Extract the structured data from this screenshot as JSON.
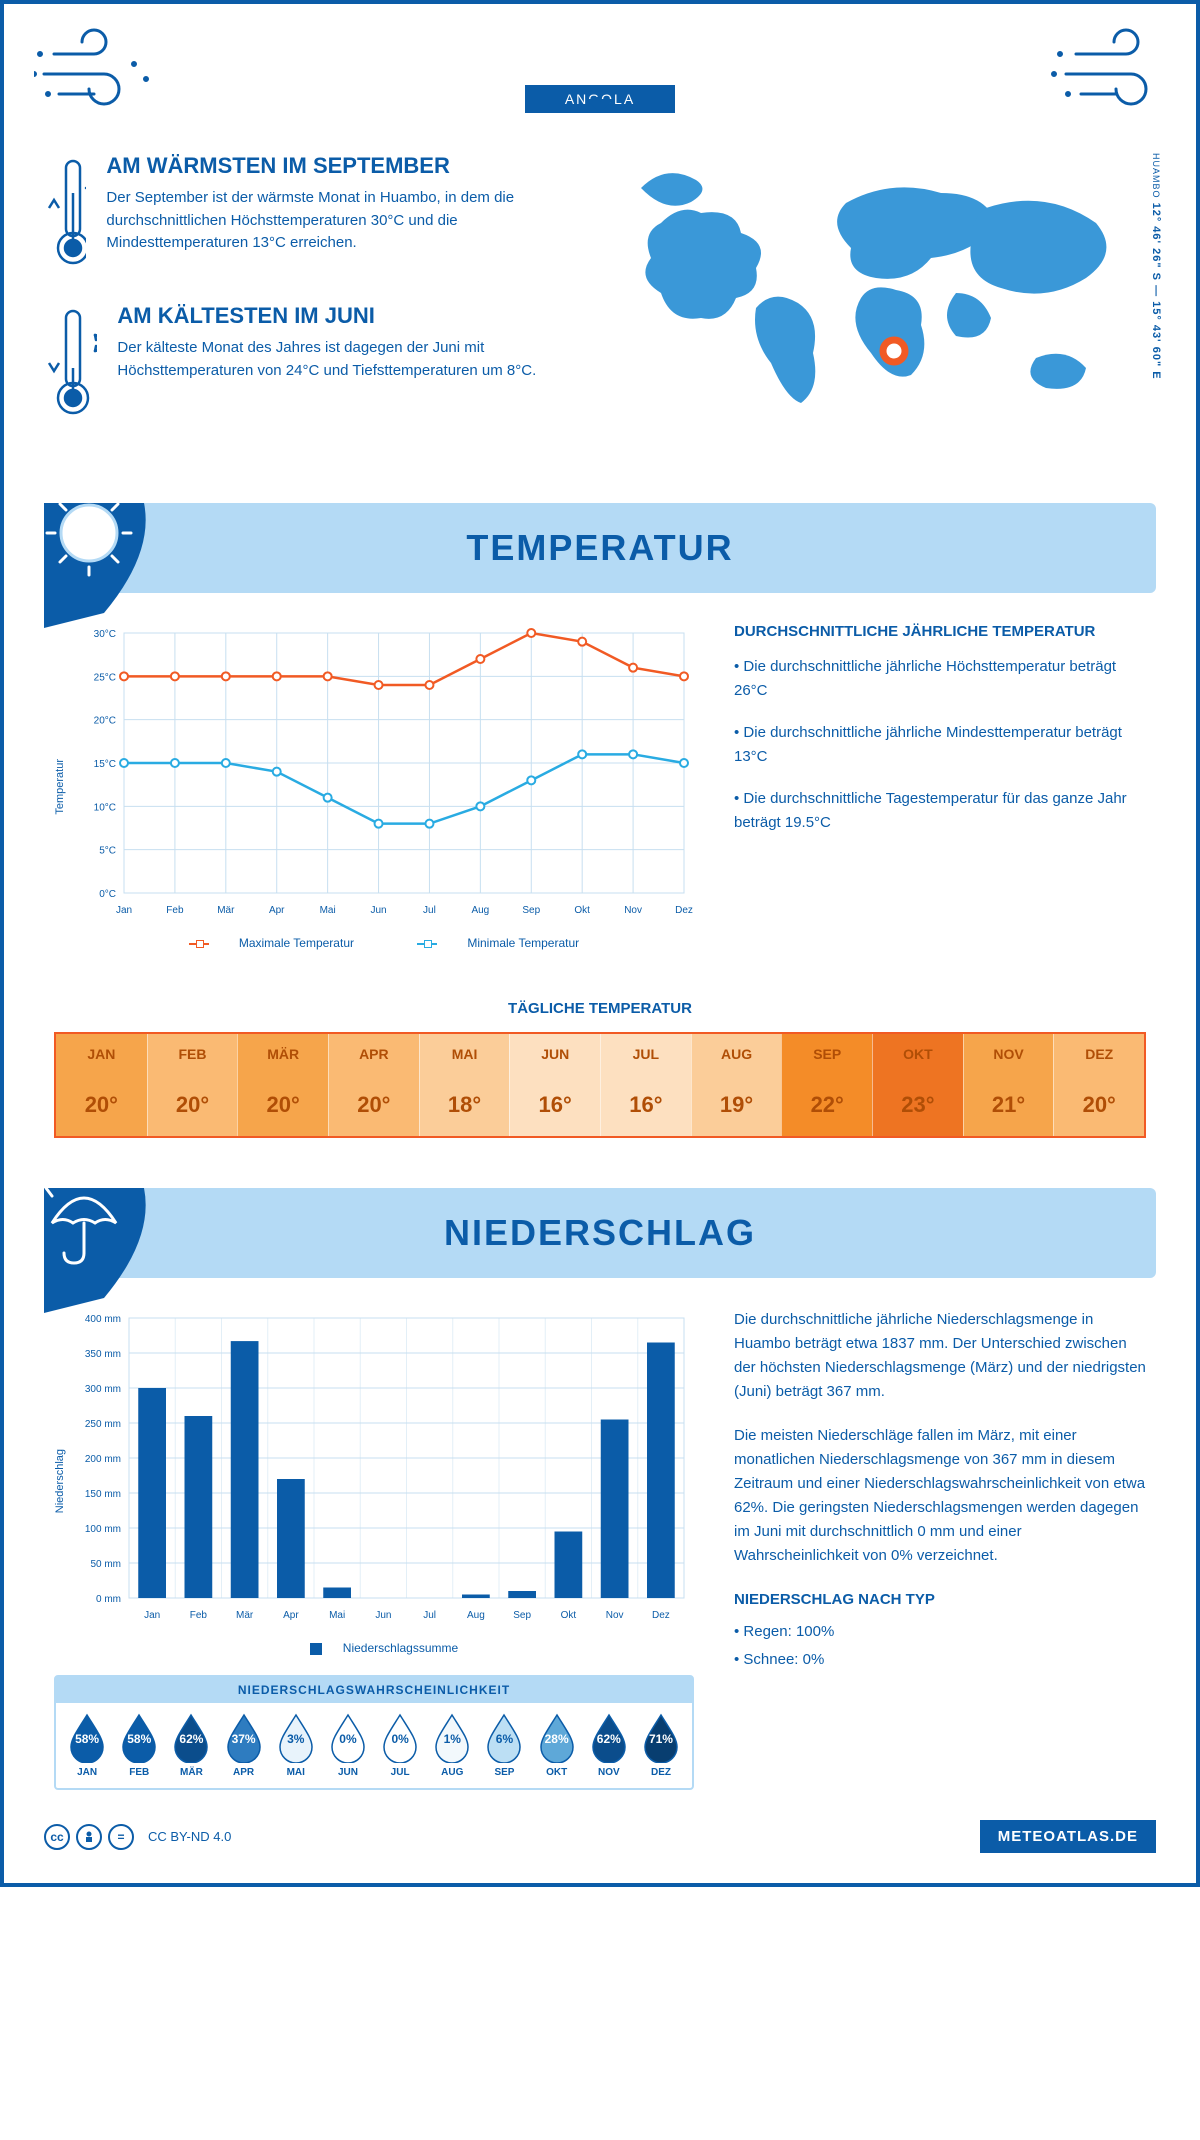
{
  "header": {
    "city": "HUAMBO",
    "country": "ANGOLA",
    "coords": "12° 46' 26\" S — 15° 43' 60\" E",
    "coord_city": "HUAMBO"
  },
  "warm": {
    "title": "AM WÄRMSTEN IM SEPTEMBER",
    "text": "Der September ist der wärmste Monat in Huambo, in dem die durchschnittlichen Höchsttemperaturen 30°C und die Mindesttemperaturen 13°C erreichen."
  },
  "cold": {
    "title": "AM KÄLTESTEN IM JUNI",
    "text": "Der kälteste Monat des Jahres ist dagegen der Juni mit Höchsttemperaturen von 24°C und Tiefsttemperaturen um 8°C."
  },
  "temp_section": {
    "title": "TEMPERATUR",
    "subtitle": "DURCHSCHNITTLICHE JÄHRLICHE TEMPERATUR",
    "p1": "• Die durchschnittliche jährliche Höchsttemperatur beträgt 26°C",
    "p2": "• Die durchschnittliche jährliche Mindesttemperatur beträgt 13°C",
    "p3": "• Die durchschnittliche Tagestemperatur für das ganze Jahr beträgt 19.5°C",
    "legend_max": "Maximale Temperatur",
    "legend_min": "Minimale Temperatur",
    "ylabel": "Temperatur"
  },
  "temp_chart": {
    "months": [
      "Jan",
      "Feb",
      "Mär",
      "Apr",
      "Mai",
      "Jun",
      "Jul",
      "Aug",
      "Sep",
      "Okt",
      "Nov",
      "Dez"
    ],
    "max": [
      25,
      25,
      25,
      25,
      25,
      24,
      24,
      27,
      30,
      29,
      26,
      25
    ],
    "min": [
      15,
      15,
      15,
      14,
      11,
      8,
      8,
      10,
      13,
      16,
      16,
      15
    ],
    "ylim": [
      0,
      30
    ],
    "ystep": 5,
    "max_color": "#f15a24",
    "min_color": "#29abe2",
    "grid_color": "#c7dff0"
  },
  "daily": {
    "title": "TÄGLICHE TEMPERATUR",
    "months": [
      "JAN",
      "FEB",
      "MÄR",
      "APR",
      "MAI",
      "JUN",
      "JUL",
      "AUG",
      "SEP",
      "OKT",
      "NOV",
      "DEZ"
    ],
    "values": [
      "20°",
      "20°",
      "20°",
      "20°",
      "18°",
      "16°",
      "16°",
      "19°",
      "22°",
      "23°",
      "21°",
      "20°"
    ],
    "head_colors": [
      "#f6a54b",
      "#faba73",
      "#f6a54b",
      "#faba73",
      "#fbcd99",
      "#fde0c0",
      "#fde0c0",
      "#fbcd99",
      "#f48c28",
      "#ee7422",
      "#f6a54b",
      "#faba73"
    ],
    "val_colors": [
      "#f6a54b",
      "#faba73",
      "#f6a54b",
      "#faba73",
      "#fbcd99",
      "#fde0c0",
      "#fde0c0",
      "#fbcd99",
      "#f48c28",
      "#ee7422",
      "#f6a54b",
      "#faba73"
    ],
    "text_color": "#b04e06",
    "border_color": "#f15a24"
  },
  "precip_section": {
    "title": "NIEDERSCHLAG",
    "p1": "Die durchschnittliche jährliche Niederschlagsmenge in Huambo beträgt etwa 1837 mm. Der Unterschied zwischen der höchsten Niederschlagsmenge (März) und der niedrigsten (Juni) beträgt 367 mm.",
    "p2": "Die meisten Niederschläge fallen im März, mit einer monatlichen Niederschlagsmenge von 367 mm in diesem Zeitraum und einer Niederschlagswahrscheinlichkeit von etwa 62%. Die geringsten Niederschlagsmengen werden dagegen im Juni mit durchschnittlich 0 mm und einer Wahrscheinlichkeit von 0% verzeichnet.",
    "type_title": "NIEDERSCHLAG NACH TYP",
    "type1": "• Regen: 100%",
    "type2": "• Schnee: 0%",
    "ylabel": "Niederschlag",
    "legend": "Niederschlagssumme"
  },
  "precip_chart": {
    "months": [
      "Jan",
      "Feb",
      "Mär",
      "Apr",
      "Mai",
      "Jun",
      "Jul",
      "Aug",
      "Sep",
      "Okt",
      "Nov",
      "Dez"
    ],
    "values": [
      300,
      260,
      367,
      170,
      15,
      0,
      0,
      5,
      10,
      95,
      255,
      365
    ],
    "ylim": [
      0,
      400
    ],
    "ystep": 50,
    "bar_color": "#0b5ca8",
    "grid_color": "#c7dff0"
  },
  "prob": {
    "title": "NIEDERSCHLAGSWAHRSCHEINLICHKEIT",
    "months": [
      "JAN",
      "FEB",
      "MÄR",
      "APR",
      "MAI",
      "JUN",
      "JUL",
      "AUG",
      "SEP",
      "OKT",
      "NOV",
      "DEZ"
    ],
    "pct": [
      "58%",
      "58%",
      "62%",
      "37%",
      "3%",
      "0%",
      "0%",
      "1%",
      "6%",
      "28%",
      "62%",
      "71%"
    ],
    "fill": [
      "#0b5ca8",
      "#0b5ca8",
      "#0b4d8c",
      "#2e7cc0",
      "#e8f3fb",
      "#ffffff",
      "#ffffff",
      "#f2f8fc",
      "#bcdff4",
      "#5ea8d8",
      "#0b4d8c",
      "#083e70"
    ],
    "textcolor": [
      "#fff",
      "#fff",
      "#fff",
      "#fff",
      "#0b5ca8",
      "#0b5ca8",
      "#0b5ca8",
      "#0b5ca8",
      "#0b5ca8",
      "#fff",
      "#fff",
      "#fff"
    ]
  },
  "footer": {
    "cc": "CC BY-ND 4.0",
    "brand": "METEOATLAS.DE"
  },
  "colors": {
    "primary": "#0b5ca8",
    "light": "#b4daf5",
    "map": "#3a98d8"
  }
}
